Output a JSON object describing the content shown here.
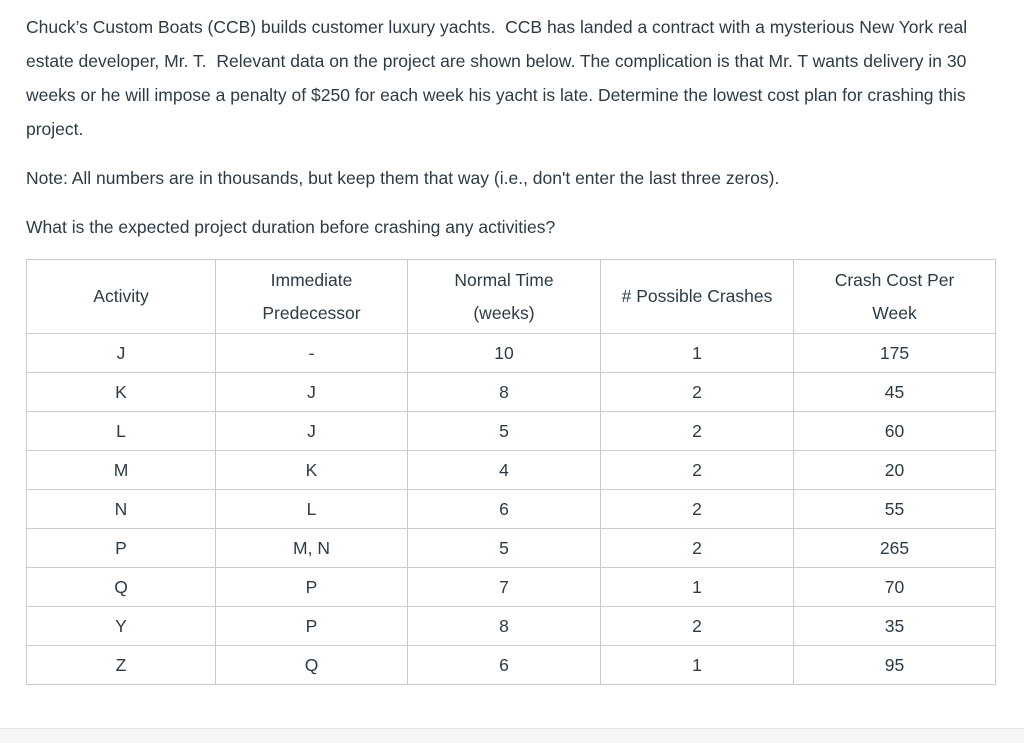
{
  "document": {
    "problem_statement": "Chuck’s Custom Boats (CCB) builds customer luxury yachts.  CCB has landed a contract with a mysterious New York real estate developer, Mr. T.  Relevant data on the project are shown below. The complication is that Mr. T wants delivery in 30 weeks or he will impose a penalty of $250 for each week his yacht is late. Determine the lowest cost plan for crashing this project.",
    "note": "Note: All numbers are in thousands, but keep them that way (i.e., don't enter the last three zeros).",
    "question": "What is the expected project duration before crashing any activities?"
  },
  "table": {
    "headers": {
      "activity": "Activity",
      "predecessor": "Immediate\nPredecessor",
      "time": "Normal Time\n(weeks)",
      "crashes": "# Possible Crashes",
      "cost": "Crash Cost Per\nWeek"
    },
    "rows": [
      {
        "activity": "J",
        "predecessor": "-",
        "time": "10",
        "crashes": "1",
        "cost": "175"
      },
      {
        "activity": "K",
        "predecessor": "J",
        "time": "8",
        "crashes": "2",
        "cost": "45"
      },
      {
        "activity": "L",
        "predecessor": "J",
        "time": "5",
        "crashes": "2",
        "cost": "60"
      },
      {
        "activity": "M",
        "predecessor": "K",
        "time": "4",
        "crashes": "2",
        "cost": "20"
      },
      {
        "activity": "N",
        "predecessor": "L",
        "time": "6",
        "crashes": "2",
        "cost": "55"
      },
      {
        "activity": "P",
        "predecessor": "M, N",
        "time": "5",
        "crashes": "2",
        "cost": "265"
      },
      {
        "activity": "Q",
        "predecessor": "P",
        "time": "7",
        "crashes": "1",
        "cost": "70"
      },
      {
        "activity": "Y",
        "predecessor": "P",
        "time": "8",
        "crashes": "2",
        "cost": "35"
      },
      {
        "activity": "Z",
        "predecessor": "Q",
        "time": "6",
        "crashes": "1",
        "cost": "95"
      }
    ]
  },
  "colors": {
    "text": "#2d3b45",
    "table_border": "#c7cdd1",
    "footer_background": "#f5f6f7"
  }
}
